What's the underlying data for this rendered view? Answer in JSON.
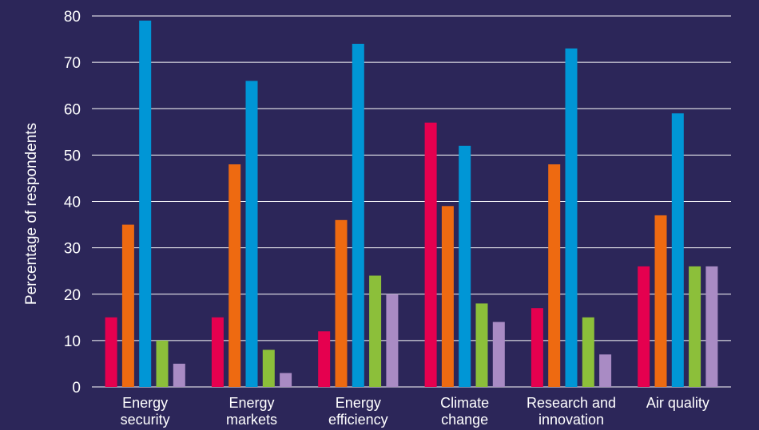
{
  "chart_data": {
    "type": "bar",
    "title": "",
    "xlabel": "",
    "ylabel": "Percentage of respondents",
    "ylim": [
      0,
      80
    ],
    "yticks": [
      0,
      10,
      20,
      30,
      40,
      50,
      60,
      70,
      80
    ],
    "grid": true,
    "legend": "none",
    "categories": [
      [
        "Energy",
        "security"
      ],
      [
        "Energy",
        "markets"
      ],
      [
        "Energy",
        "efficiency"
      ],
      [
        "Climate",
        "change"
      ],
      [
        "Research and",
        "innovation"
      ],
      [
        "Air quality"
      ]
    ],
    "series": [
      {
        "color": "#e5004f",
        "values": [
          15,
          15,
          12,
          57,
          17,
          26
        ]
      },
      {
        "color": "#ee6a11",
        "values": [
          35,
          48,
          36,
          39,
          48,
          37
        ]
      },
      {
        "color": "#0096d6",
        "values": [
          79,
          66,
          74,
          52,
          73,
          59
        ]
      },
      {
        "color": "#8cbf3a",
        "values": [
          10,
          8,
          24,
          18,
          15,
          26
        ]
      },
      {
        "color": "#a98bc4",
        "values": [
          5,
          3,
          20,
          14,
          7,
          26
        ]
      }
    ]
  },
  "colors": {
    "background": "#2c2659",
    "text": "#ffffff",
    "grid": "#ffffff"
  }
}
